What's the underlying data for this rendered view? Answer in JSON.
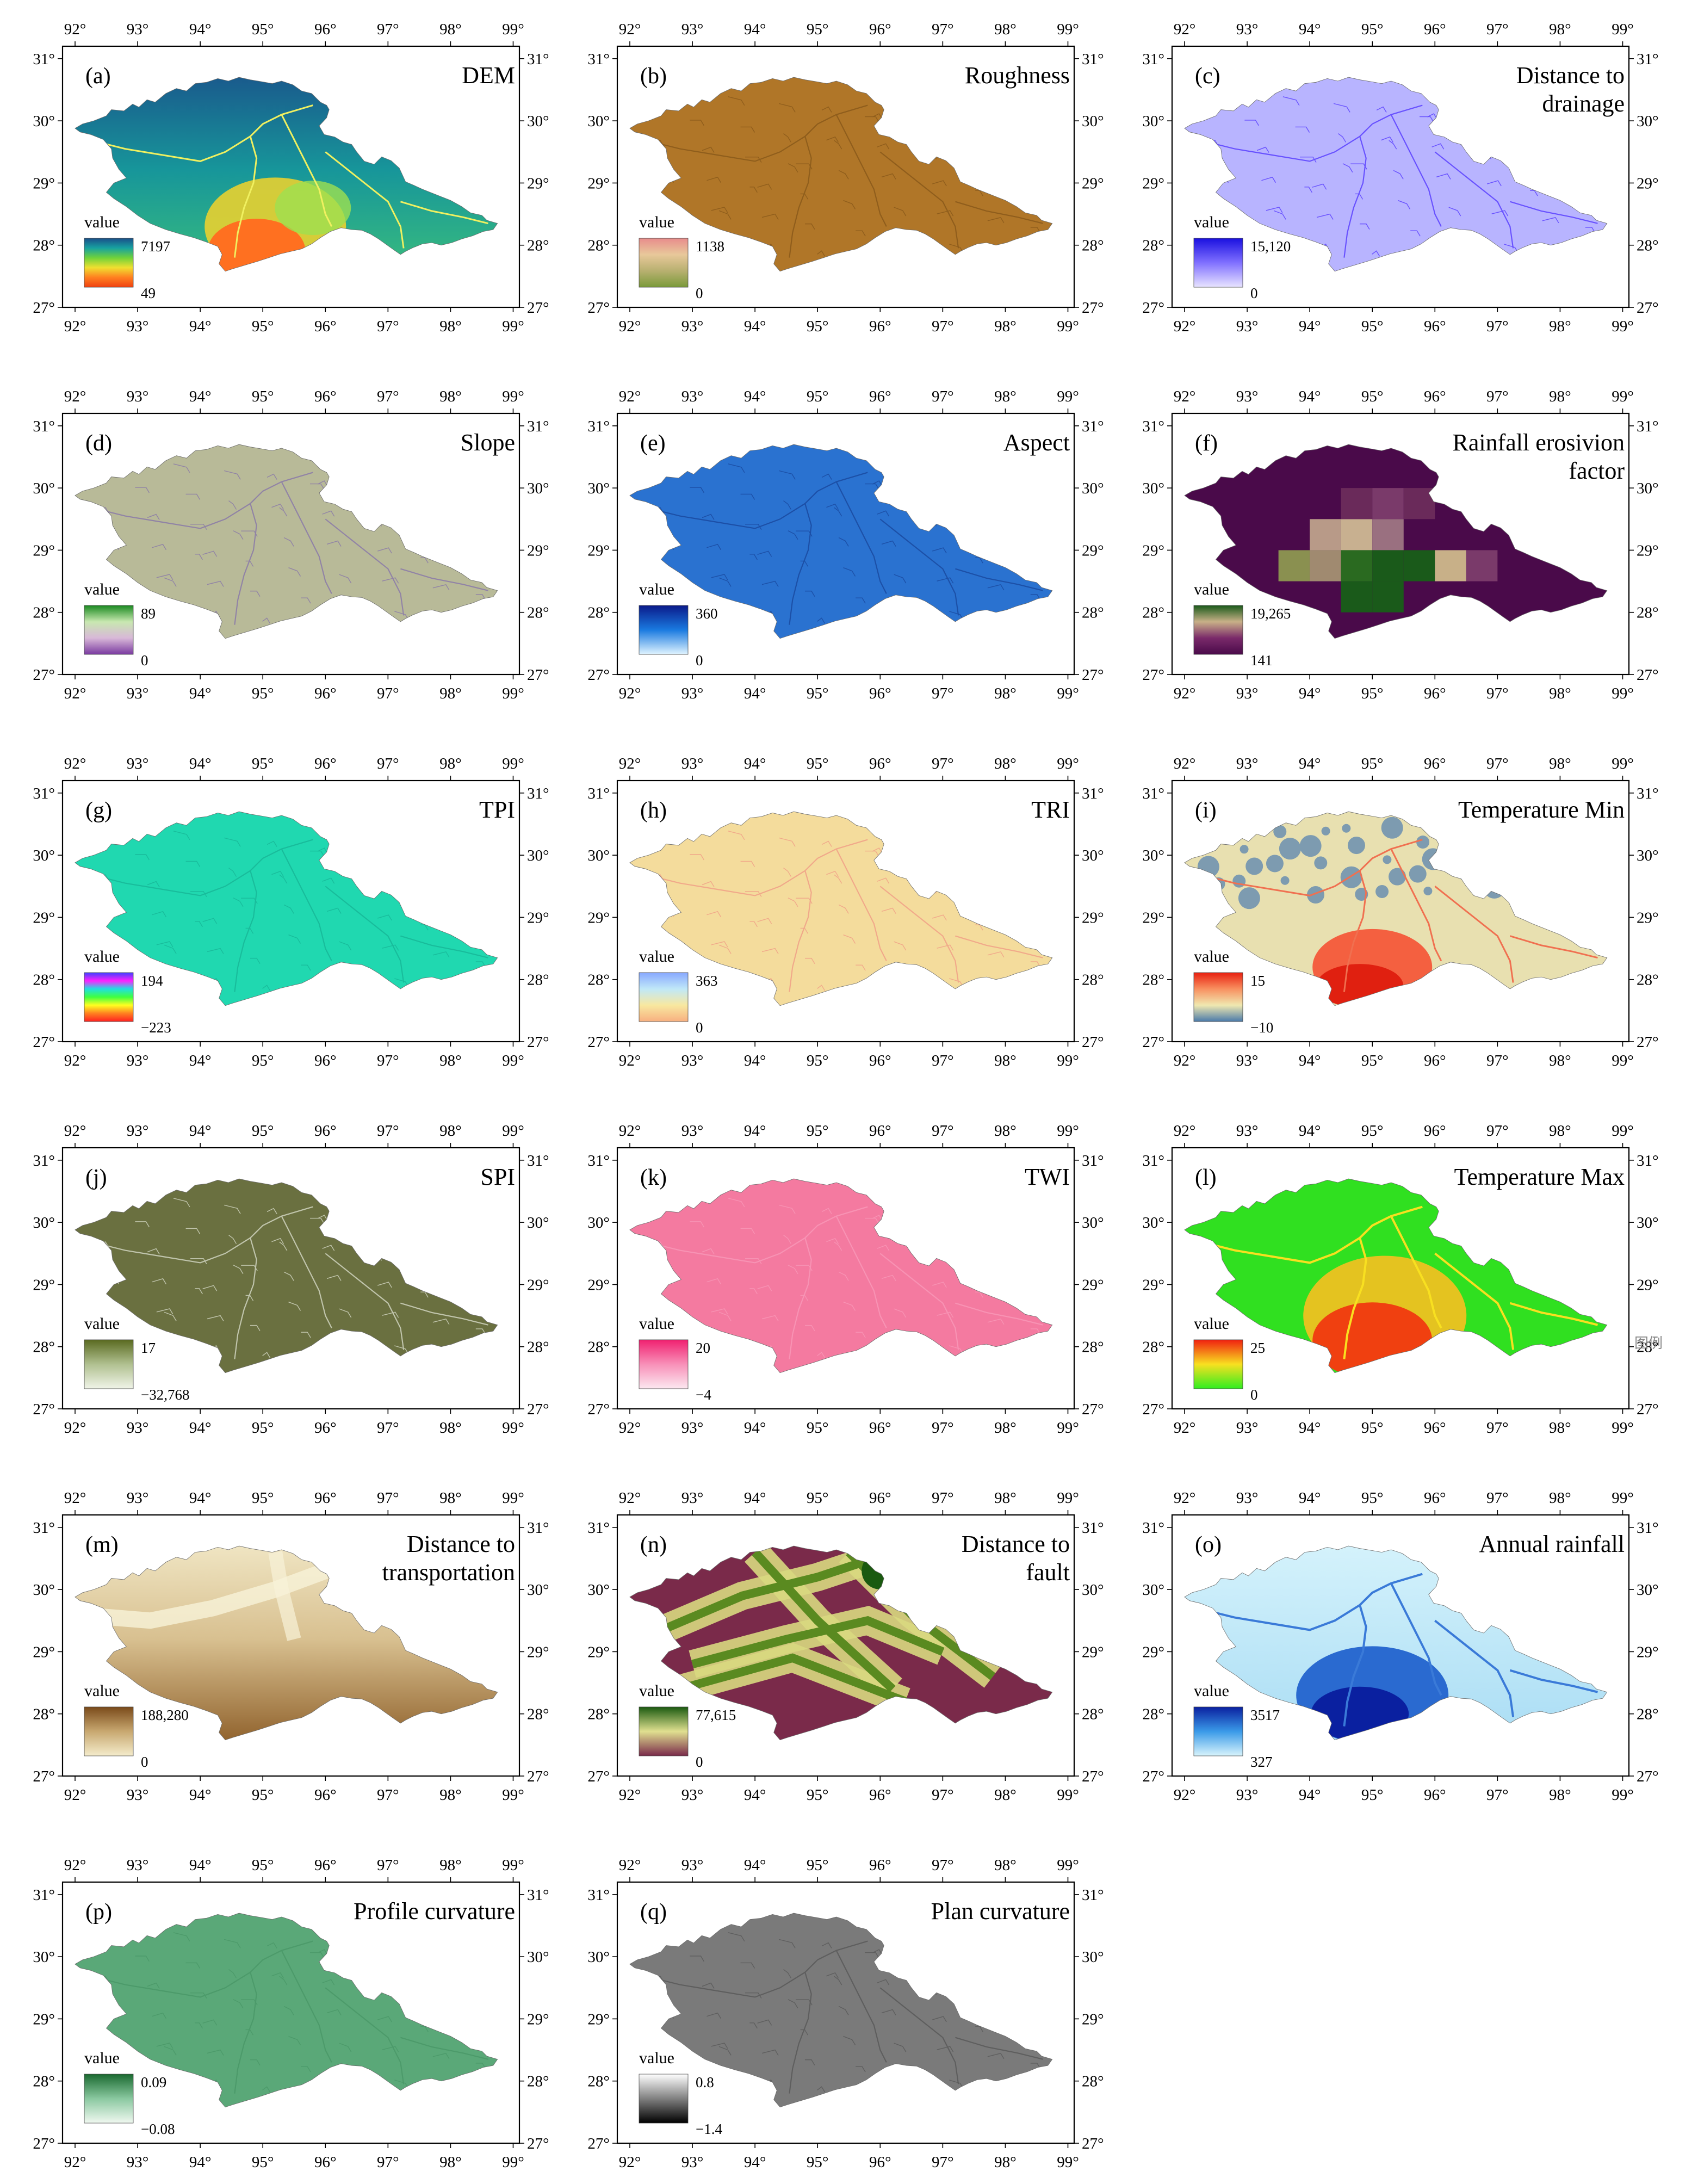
{
  "figure": {
    "lon_ticks": [
      "92°",
      "93°",
      "94°",
      "95°",
      "96°",
      "97°",
      "98°",
      "99°"
    ],
    "lat_ticks": [
      "31°",
      "30°",
      "29°",
      "28°",
      "27°"
    ],
    "legend_title": "value",
    "stray_label": "图例"
  },
  "panels": [
    {
      "letter": "(a)",
      "title": [
        "DEM"
      ],
      "max": "7197",
      "min": "49",
      "ramp": [
        "#1a4f8a",
        "#17a2a0",
        "#6fd23a",
        "#f0e030",
        "#ff8020",
        "#f04010"
      ],
      "fill": "dem"
    },
    {
      "letter": "(b)",
      "title": [
        "Roughness"
      ],
      "max": "1138",
      "min": "0",
      "ramp": [
        "#e88c8c",
        "#e8c89a",
        "#b8b070",
        "#7a9a3a"
      ],
      "fill": "#b07628",
      "texture": "#8a5a1a"
    },
    {
      "letter": "(c)",
      "title": [
        "Distance to",
        "drainage"
      ],
      "max": "15,120",
      "min": "0",
      "ramp": [
        "#1a10e0",
        "#8070ff",
        "#e8e4ff"
      ],
      "fill": "#b8b4ff",
      "texture": "#5a40ff"
    },
    {
      "letter": "(d)",
      "title": [
        "Slope"
      ],
      "max": "89",
      "min": "0",
      "ramp": [
        "#1a8a20",
        "#c8e8b0",
        "#d8b8d8",
        "#7a3aa0"
      ],
      "fill": "#b8ba98",
      "texture": "#8a7aa8"
    },
    {
      "letter": "(e)",
      "title": [
        "Aspect"
      ],
      "max": "360",
      "min": "0",
      "ramp": [
        "#0a1a8a",
        "#1a7ae0",
        "#e0f4ff"
      ],
      "fill": "#2a72d0",
      "texture": "#1a4aa0"
    },
    {
      "letter": "(f)",
      "title": [
        "Rainfall erosivion",
        "factor"
      ],
      "max": "19,265",
      "min": "141",
      "ramp": [
        "#1a5a1a",
        "#c8b088",
        "#7a2a6a",
        "#4a0a4a"
      ],
      "fill": "rainfall_erosivity"
    },
    {
      "letter": "(g)",
      "title": [
        "TPI"
      ],
      "max": "194",
      "min": "−223",
      "ramp": [
        "#4040ff",
        "#ff20ff",
        "#20e0e0",
        "#40ff40",
        "#ffff20",
        "#ff8020",
        "#ff2020"
      ],
      "fill": "#20d8b0",
      "texture": "#18b898"
    },
    {
      "letter": "(h)",
      "title": [
        "TRI"
      ],
      "max": "363",
      "min": "0",
      "ramp": [
        "#88a8ff",
        "#c0e8f8",
        "#f8e8a0",
        "#f8b080"
      ],
      "fill": "#f4dc9c",
      "texture": "#f0a088"
    },
    {
      "letter": "(i)",
      "title": [
        "Temperature Min"
      ],
      "max": "15",
      "min": "−10",
      "ramp": [
        "#e82010",
        "#f89060",
        "#f0e8b0",
        "#4a7aaa"
      ],
      "fill": "temp_min"
    },
    {
      "letter": "(j)",
      "title": [
        "SPI"
      ],
      "max": "17",
      "min": "−32,768",
      "ramp": [
        "#5a6a20",
        "#b0c090",
        "#f0f4e8"
      ],
      "fill": "#6a7040",
      "texture": "#d0d4c0"
    },
    {
      "letter": "(k)",
      "title": [
        "TWI"
      ],
      "max": "20",
      "min": "−4",
      "ramp": [
        "#f02070",
        "#f890b8",
        "#fce8f0"
      ],
      "fill": "#f47aa0",
      "texture": "#f898b8"
    },
    {
      "letter": "(l)",
      "title": [
        "Temperature Max"
      ],
      "max": "25",
      "min": "0",
      "ramp": [
        "#f02010",
        "#f8e020",
        "#30ee20"
      ],
      "fill": "temp_max"
    },
    {
      "letter": "(m)",
      "title": [
        "Distance to",
        "transportation"
      ],
      "max": "188,280",
      "min": "0",
      "ramp": [
        "#7a4a1a",
        "#c8a870",
        "#f4eccc"
      ],
      "fill": "dist_transport"
    },
    {
      "letter": "(n)",
      "title": [
        "Distance to",
        "fault"
      ],
      "max": "77,615",
      "min": "0",
      "ramp": [
        "#1a5a10",
        "#e0e090",
        "#7a2a4a"
      ],
      "fill": "dist_fault"
    },
    {
      "letter": "(o)",
      "title": [
        "Annual rainfall"
      ],
      "max": "3517",
      "min": "327",
      "ramp": [
        "#0a20a0",
        "#3a9ae8",
        "#d8f4fc"
      ],
      "fill": "annual_rainfall"
    },
    {
      "letter": "(p)",
      "title": [
        "Profile curvature"
      ],
      "max": "0.09",
      "min": "−0.08",
      "ramp": [
        "#1a6a30",
        "#8ac8a0",
        "#f0f8f0"
      ],
      "fill": "#5aa878",
      "texture": "#4a9868"
    },
    {
      "letter": "(q)",
      "title": [
        "Plan curvature"
      ],
      "max": "0.8",
      "min": "−1.4",
      "ramp": [
        "#ffffff",
        "#808080",
        "#000000"
      ],
      "fill": "#7a7a7a",
      "texture": "#5a5a5a"
    }
  ]
}
